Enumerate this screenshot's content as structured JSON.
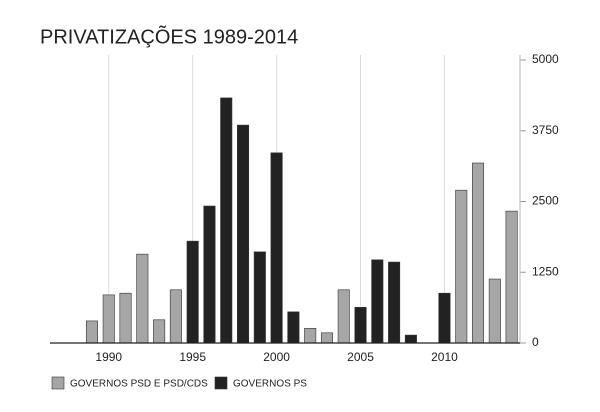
{
  "chart_data": {
    "type": "bar",
    "title": "PRIVATIZAÇÕES  1989-2014",
    "x": [
      1989,
      1990,
      1991,
      1992,
      1993,
      1994,
      1995,
      1996,
      1997,
      1998,
      1999,
      2000,
      2001,
      2002,
      2003,
      2004,
      2005,
      2006,
      2007,
      2008,
      2009,
      2010,
      2011,
      2012,
      2013,
      2014
    ],
    "series": [
      {
        "name": "GOVERNOS PSD E PSD/CDS",
        "color": "#a6a6a6",
        "values": [
          390,
          850,
          880,
          1570,
          410,
          940,
          null,
          null,
          null,
          null,
          null,
          null,
          null,
          260,
          180,
          940,
          null,
          null,
          null,
          null,
          null,
          null,
          2700,
          3180,
          1130,
          2330
        ]
      },
      {
        "name": "GOVERNOS PS",
        "color": "#222222",
        "values": [
          null,
          null,
          null,
          null,
          null,
          null,
          1800,
          2420,
          4330,
          3850,
          1610,
          3360,
          550,
          null,
          null,
          null,
          630,
          1470,
          1430,
          140,
          null,
          880,
          null,
          null,
          null,
          null
        ]
      }
    ],
    "xlim": [
      1986.5,
      2014.5
    ],
    "xticks": [
      1990,
      1995,
      2000,
      2005,
      2010
    ],
    "ylim": [
      0,
      5000
    ],
    "yticks": [
      0,
      1250,
      2500,
      3750,
      5000
    ],
    "grid": true
  }
}
